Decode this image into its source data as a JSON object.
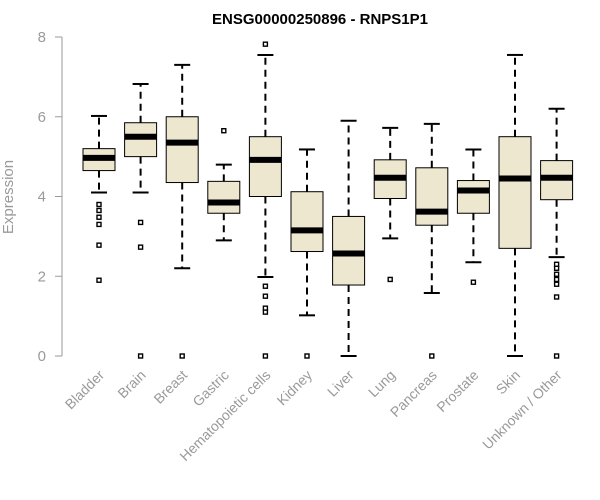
{
  "chart_data": {
    "type": "boxplot",
    "title": "ENSG00000250896 - RNPS1P1",
    "xlabel": "",
    "ylabel": "Expression",
    "ylim": [
      0,
      8
    ],
    "yticks": [
      0,
      2,
      4,
      6,
      8
    ],
    "grid": false,
    "colors": {
      "box_fill": "#ede7cf",
      "box_stroke": "#000000",
      "median": "#000000",
      "axis": "#9a9a9a",
      "text": "#9a9a9a",
      "title": "#000000"
    },
    "categories": [
      "Bladder",
      "Brain",
      "Breast",
      "Gastric",
      "Hematopoietic cells",
      "Kidney",
      "Liver",
      "Lung",
      "Pancreas",
      "Prostate",
      "Skin",
      "Unknown / Other"
    ],
    "boxes": [
      {
        "category": "Bladder",
        "whisker_low": 4.1,
        "q1": 4.65,
        "median": 4.97,
        "q3": 5.2,
        "whisker_high": 6.02,
        "outliers": [
          3.8,
          3.65,
          3.48,
          3.3,
          2.78,
          1.9
        ]
      },
      {
        "category": "Brain",
        "whisker_low": 4.1,
        "q1": 5.0,
        "median": 5.5,
        "q3": 5.85,
        "whisker_high": 6.82,
        "outliers": [
          3.35,
          2.73,
          0.0
        ]
      },
      {
        "category": "Breast",
        "whisker_low": 2.2,
        "q1": 4.35,
        "median": 5.35,
        "q3": 6.0,
        "whisker_high": 7.3,
        "outliers": [
          0.0
        ]
      },
      {
        "category": "Gastric",
        "whisker_low": 2.9,
        "q1": 3.58,
        "median": 3.85,
        "q3": 4.38,
        "whisker_high": 4.8,
        "outliers": [
          5.65
        ]
      },
      {
        "category": "Hematopoietic cells",
        "whisker_low": 1.98,
        "q1": 4.0,
        "median": 4.92,
        "q3": 5.5,
        "whisker_high": 7.55,
        "outliers": [
          7.82,
          1.75,
          1.5,
          1.2,
          1.1,
          0.0
        ]
      },
      {
        "category": "Kidney",
        "whisker_low": 1.02,
        "q1": 2.62,
        "median": 3.15,
        "q3": 4.12,
        "whisker_high": 5.18,
        "outliers": [
          0.0
        ]
      },
      {
        "category": "Liver",
        "whisker_low": 0.0,
        "q1": 1.78,
        "median": 2.57,
        "q3": 3.5,
        "whisker_high": 5.9,
        "outliers": []
      },
      {
        "category": "Lung",
        "whisker_low": 2.95,
        "q1": 3.95,
        "median": 4.47,
        "q3": 4.92,
        "whisker_high": 5.72,
        "outliers": [
          1.92
        ]
      },
      {
        "category": "Pancreas",
        "whisker_low": 1.58,
        "q1": 3.28,
        "median": 3.62,
        "q3": 4.72,
        "whisker_high": 5.82,
        "outliers": [
          0.0
        ]
      },
      {
        "category": "Prostate",
        "whisker_low": 2.35,
        "q1": 3.58,
        "median": 4.15,
        "q3": 4.4,
        "whisker_high": 5.18,
        "outliers": [
          1.85
        ]
      },
      {
        "category": "Skin",
        "whisker_low": 0.0,
        "q1": 2.7,
        "median": 4.45,
        "q3": 5.5,
        "whisker_high": 7.55,
        "outliers": []
      },
      {
        "category": "Unknown / Other",
        "whisker_low": 2.48,
        "q1": 3.92,
        "median": 4.47,
        "q3": 4.9,
        "whisker_high": 6.2,
        "outliers": [
          2.3,
          2.2,
          2.05,
          1.92,
          1.8,
          1.48,
          0.0
        ]
      }
    ]
  }
}
